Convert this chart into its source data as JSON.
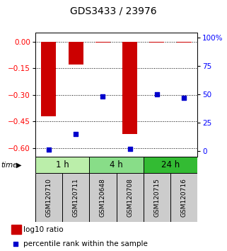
{
  "title": "GDS3433 / 23976",
  "samples": [
    "GSM120710",
    "GSM120711",
    "GSM120648",
    "GSM120708",
    "GSM120715",
    "GSM120716"
  ],
  "groups": [
    {
      "label": "1 h",
      "indices": [
        0,
        1
      ],
      "color": "#bbeeaa"
    },
    {
      "label": "4 h",
      "indices": [
        2,
        3
      ],
      "color": "#88dd88"
    },
    {
      "label": "24 h",
      "indices": [
        4,
        5
      ],
      "color": "#33bb33"
    }
  ],
  "log10_ratio": [
    -0.42,
    -0.13,
    -0.005,
    -0.52,
    -0.005,
    -0.005
  ],
  "percentile_rank": [
    1.0,
    15.0,
    48.0,
    1.5,
    50.0,
    47.0
  ],
  "ylim_left": [
    -0.65,
    0.05
  ],
  "ylim_right": [
    -5.42,
    104.58
  ],
  "yticks_left": [
    0,
    -0.15,
    -0.3,
    -0.45,
    -0.6
  ],
  "yticks_right": [
    0,
    25,
    50,
    75,
    100
  ],
  "bar_color": "#cc0000",
  "dot_color": "#0000cc",
  "bar_width": 0.55,
  "dot_size": 18,
  "legend_bar_label": "log10 ratio",
  "legend_dot_label": "percentile rank within the sample",
  "title_fontsize": 10,
  "tick_fontsize": 7.5,
  "sample_label_fontsize": 6.5,
  "group_label_fontsize": 8.5,
  "legend_fontsize": 7.5
}
